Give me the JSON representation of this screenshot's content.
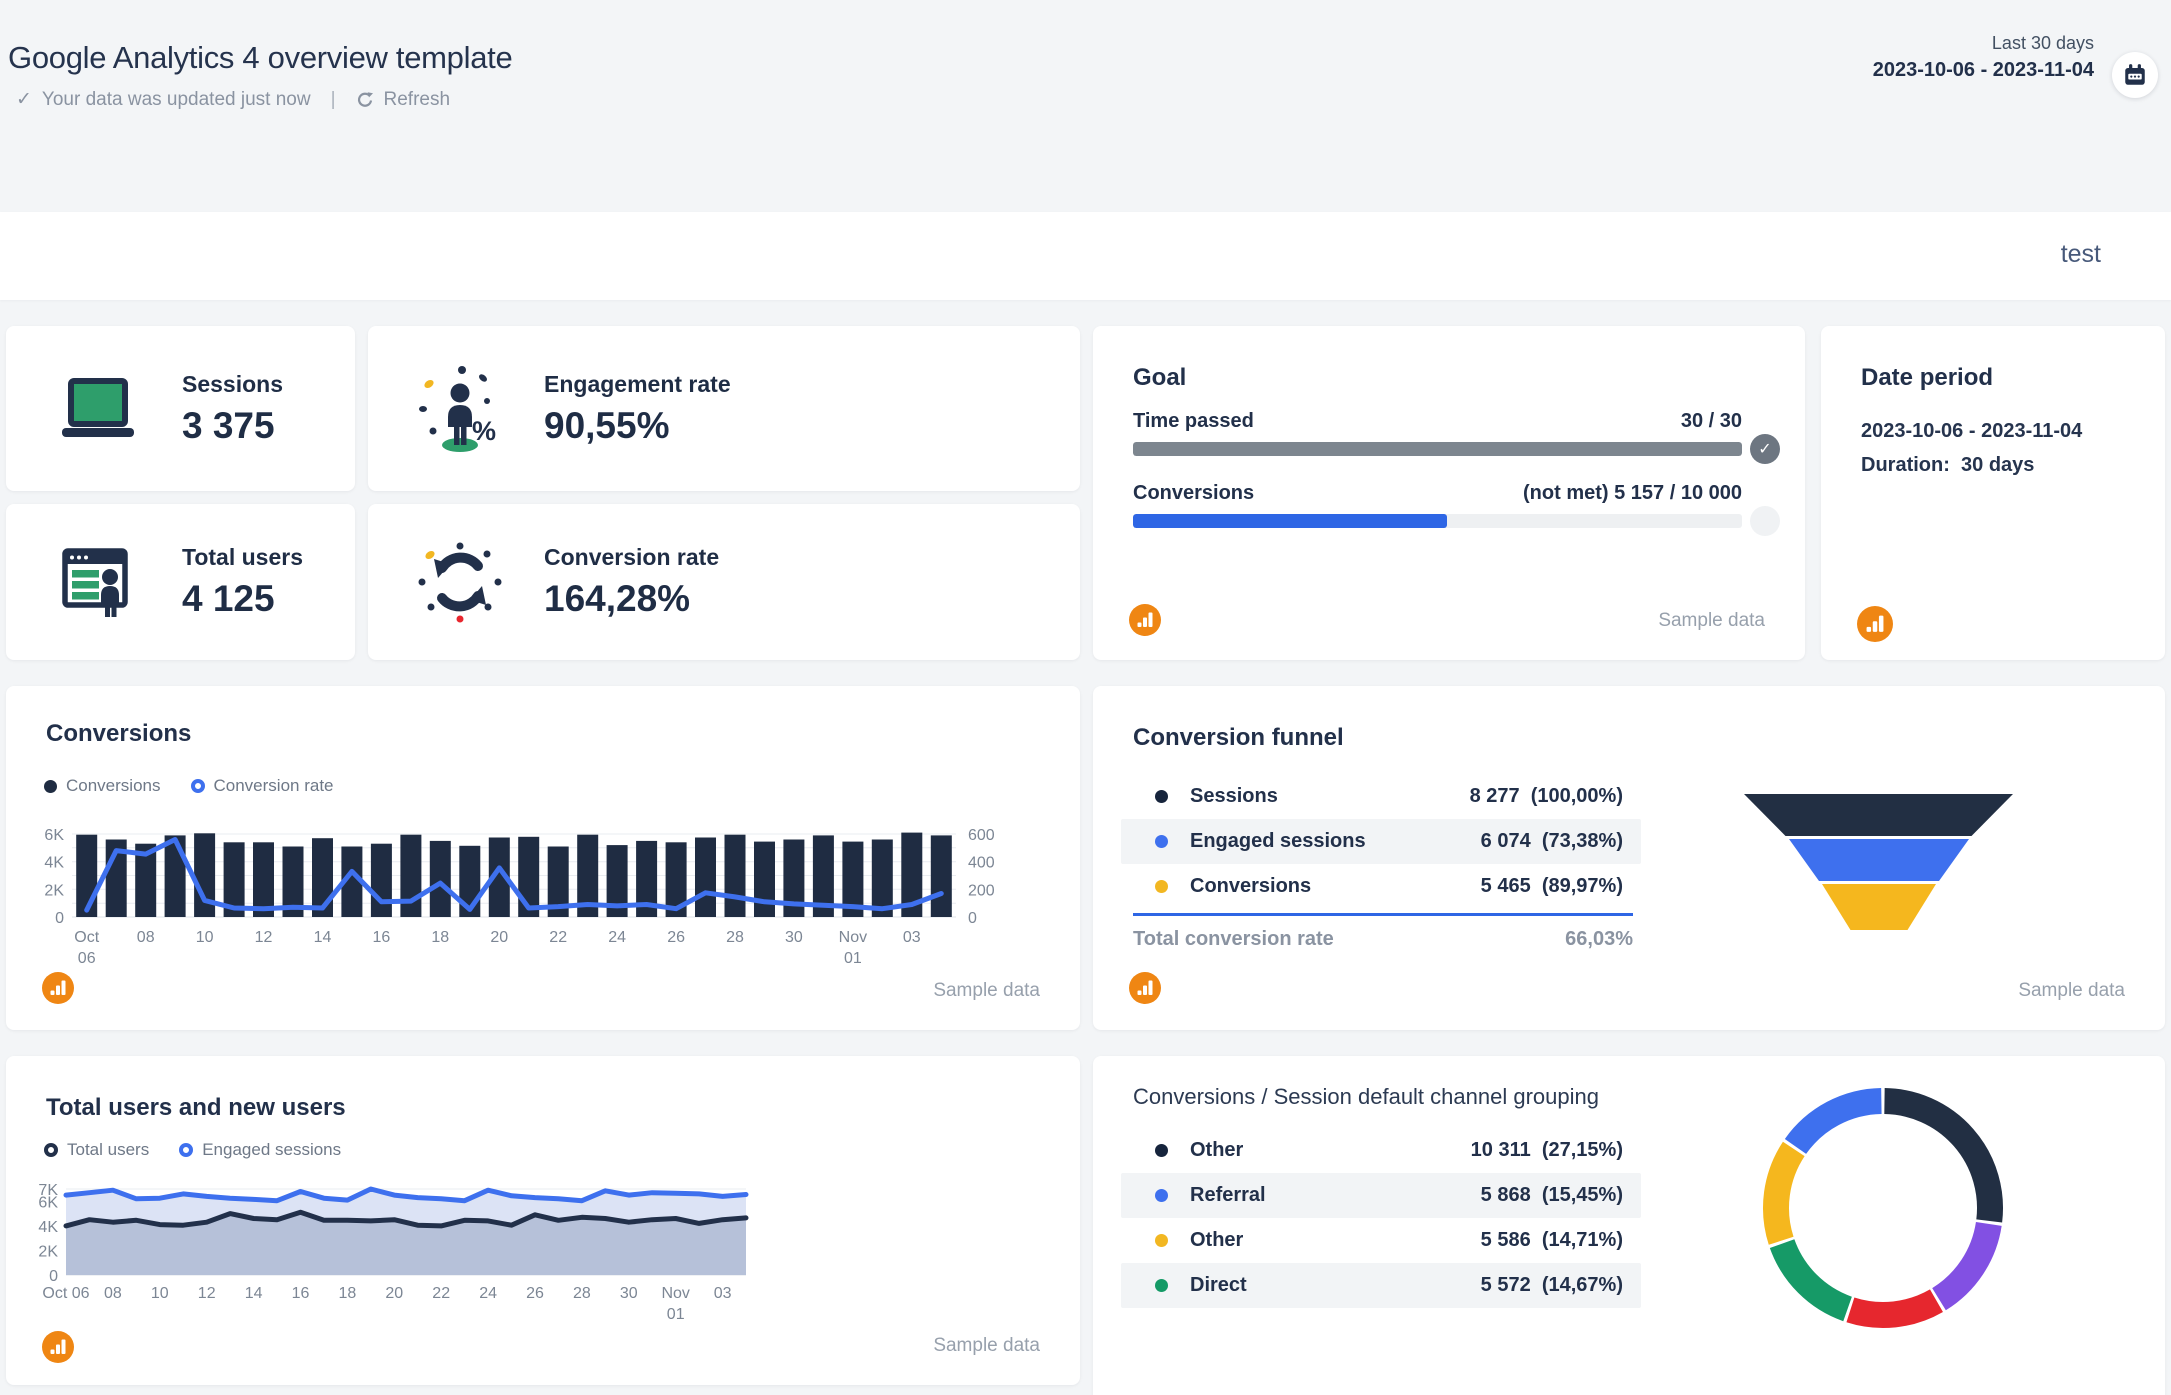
{
  "header": {
    "title": "Google Analytics 4 overview template",
    "updated": "Your data was updated just now",
    "refresh": "Refresh",
    "period_label": "Last 30 days",
    "period_range": "2023-10-06 - 2023-11-04"
  },
  "toolbar": {
    "account": "test"
  },
  "kpis": [
    {
      "label": "Sessions",
      "value": "3 375",
      "icon": "laptop-icon"
    },
    {
      "label": "Engagement rate",
      "value": "90,55%",
      "icon": "engagement-icon"
    },
    {
      "label": "Total users",
      "value": "4 125",
      "icon": "browser-users-icon"
    },
    {
      "label": "Conversion rate",
      "value": "164,28%",
      "icon": "cycle-icon"
    }
  ],
  "goal": {
    "title": "Goal",
    "time": {
      "label": "Time passed",
      "value": "30 / 30",
      "pct": 100
    },
    "conversions": {
      "label": "Conversions",
      "value": "(not met) 5 157 / 10 000",
      "pct": 51.6
    },
    "footer": "Sample data"
  },
  "date_period": {
    "title": "Date period",
    "range": "2023-10-06 - 2023-11-04",
    "duration_label": "Duration:",
    "duration": "30 days"
  },
  "colors": {
    "navy": "#22304a",
    "bar": "#1f2c42",
    "blue": "#3e70ee",
    "progress_blue": "#2e66e5",
    "green": "#2e9e6b",
    "yellow": "#f2b722",
    "orange": "#ef8613"
  },
  "chart_data": [
    {
      "id": "conversions",
      "type": "bar+line",
      "title": "Conversions",
      "legend": [
        {
          "label": "Conversions",
          "marker": "filled",
          "color": "#1f2c42"
        },
        {
          "label": "Conversion rate",
          "marker": "ring",
          "color": "#3e70ee"
        }
      ],
      "bar_color": "#1f2c42",
      "line_color": "#3e70ee",
      "left_axis": {
        "max": 6000,
        "ticks": [
          [
            "6K",
            6000
          ],
          [
            "4K",
            4000
          ],
          [
            "2K",
            2000
          ],
          [
            "0",
            0
          ]
        ]
      },
      "right_axis": {
        "max": 600,
        "ticks": [
          [
            "600",
            600
          ],
          [
            "400",
            400
          ],
          [
            "200",
            200
          ],
          [
            "0",
            0
          ]
        ]
      },
      "x_ticks": [
        [
          "Oct",
          "06"
        ],
        [
          "08"
        ],
        [
          "10"
        ],
        [
          "12"
        ],
        [
          "14"
        ],
        [
          "16"
        ],
        [
          "18"
        ],
        [
          "20"
        ],
        [
          "22"
        ],
        [
          "24"
        ],
        [
          "26"
        ],
        [
          "28"
        ],
        [
          "30"
        ],
        [
          "Nov",
          "01"
        ],
        [
          "03"
        ]
      ],
      "bars": [
        5950,
        5600,
        5300,
        5900,
        6050,
        5400,
        5400,
        5100,
        5700,
        5100,
        5300,
        5950,
        5500,
        5150,
        5750,
        5800,
        5100,
        5950,
        5200,
        5500,
        5400,
        5750,
        5950,
        5450,
        5600,
        5900,
        5450,
        5600,
        6100,
        5900
      ],
      "line": [
        50,
        480,
        455,
        560,
        120,
        65,
        60,
        70,
        65,
        330,
        110,
        115,
        245,
        55,
        355,
        65,
        75,
        90,
        80,
        90,
        60,
        175,
        145,
        110,
        95,
        85,
        75,
        60,
        90,
        170
      ],
      "footer": "Sample data"
    },
    {
      "id": "conversion_funnel",
      "type": "funnel",
      "title": "Conversion funnel",
      "rows": [
        {
          "label": "Sessions",
          "color": "#16243c",
          "value": "8 277",
          "pct": "(100,00%)"
        },
        {
          "label": "Engaged sessions",
          "color": "#3e70ee",
          "value": "6 074",
          "pct": "(73,38%)"
        },
        {
          "label": "Conversions",
          "color": "#f2b722",
          "value": "5 465",
          "pct": "(89,97%)"
        }
      ],
      "total_label": "Total conversion rate",
      "total_value": "66,03%",
      "layers": [
        {
          "color": "#222f43"
        },
        {
          "color": "#3e70ee"
        },
        {
          "color": "#f5b71e"
        }
      ],
      "footer": "Sample data"
    },
    {
      "id": "users",
      "type": "area",
      "title": "Total users and new users",
      "legend": [
        {
          "label": "Total users",
          "marker": "ring",
          "color": "#22304a"
        },
        {
          "label": "Engaged sessions",
          "marker": "ring",
          "color": "#3e70ee"
        }
      ],
      "y_ticks": [
        [
          "7K",
          7000
        ],
        [
          "6K",
          6000
        ],
        [
          "4K",
          4000
        ],
        [
          "2K",
          2000
        ],
        [
          "0",
          0
        ]
      ],
      "y_max": 7000,
      "x_ticks": [
        [
          "Oct 06"
        ],
        [
          "08"
        ],
        [
          "10"
        ],
        [
          "12"
        ],
        [
          "14"
        ],
        [
          "16"
        ],
        [
          "18"
        ],
        [
          "20"
        ],
        [
          "22"
        ],
        [
          "24"
        ],
        [
          "26"
        ],
        [
          "28"
        ],
        [
          "30"
        ],
        [
          "Nov",
          "01"
        ],
        [
          "03"
        ]
      ],
      "series": [
        {
          "name": "Engaged sessions",
          "color": "#3e70ee",
          "fill": "#dce3f5",
          "values": [
            6500,
            6700,
            6900,
            6200,
            6250,
            6600,
            6400,
            6250,
            6150,
            6050,
            6800,
            6250,
            6100,
            7000,
            6500,
            6300,
            6200,
            6050,
            6900,
            6450,
            6300,
            6200,
            6050,
            6850,
            6500,
            6700,
            6650,
            6600,
            6400,
            6550
          ]
        },
        {
          "name": "Total users",
          "color": "#22304a",
          "fill": "#b6c1d9",
          "values": [
            4000,
            4500,
            4300,
            4450,
            4100,
            4050,
            4300,
            5000,
            4600,
            4500,
            5100,
            4450,
            4450,
            4400,
            4500,
            4050,
            4000,
            4450,
            4400,
            4050,
            4900,
            4450,
            4700,
            4600,
            4300,
            4500,
            4600,
            4200,
            4500,
            4650
          ]
        }
      ],
      "footer": "Sample data"
    },
    {
      "id": "channels",
      "type": "donut",
      "title": "Conversions / Session default channel grouping",
      "rows": [
        {
          "label": "Other",
          "color": "#16243c",
          "value": "10 311",
          "pct": "(27,15%)"
        },
        {
          "label": "Referral",
          "color": "#3e70ee",
          "value": "5 868",
          "pct": "(15,45%)"
        },
        {
          "label": "Other",
          "color": "#f2b722",
          "value": "5 586",
          "pct": "(14,71%)"
        },
        {
          "label": "Direct",
          "color": "#149a66",
          "value": "5 572",
          "pct": "(14,67%)"
        }
      ],
      "segments": [
        {
          "name": "Other",
          "color": "#222f43",
          "pct": 27.15
        },
        {
          "name": "Other",
          "color": "#8250e3",
          "pct": 14.3
        },
        {
          "name": "Other",
          "color": "#e6272e",
          "pct": 13.7
        },
        {
          "name": "Direct",
          "color": "#169a67",
          "pct": 14.67
        },
        {
          "name": "Other",
          "color": "#f5b71e",
          "pct": 14.71
        },
        {
          "name": "Referral",
          "color": "#3e70ee",
          "pct": 15.45
        }
      ]
    }
  ]
}
